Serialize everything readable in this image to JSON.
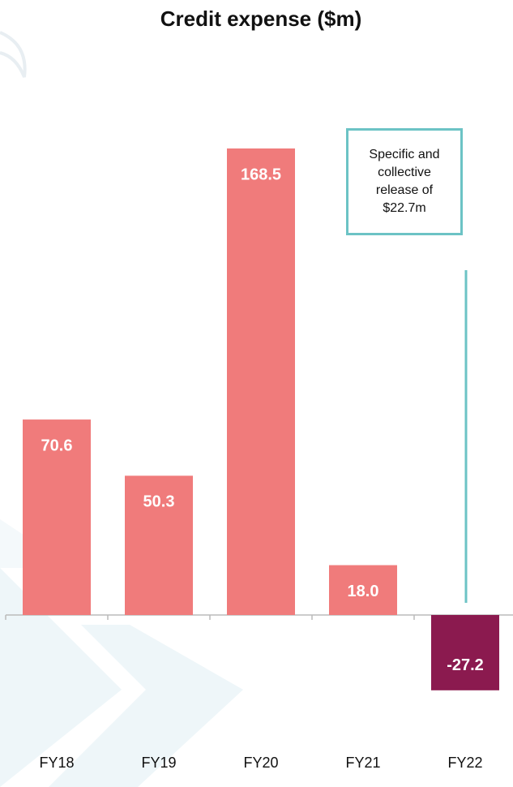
{
  "chart_data": {
    "type": "bar",
    "title": "Credit expense ($m)",
    "categories": [
      "FY18",
      "FY19",
      "FY20",
      "FY21",
      "FY22"
    ],
    "values": [
      70.6,
      50.3,
      168.5,
      18.0,
      -27.2
    ],
    "value_labels": [
      "70.6",
      "50.3",
      "168.5",
      "18.0",
      "-27.2"
    ],
    "colors": [
      "#f07b7b",
      "#f07b7b",
      "#f07b7b",
      "#f07b7b",
      "#8b1a4f"
    ],
    "annotation": "Specific and collective release of $22.7m"
  }
}
